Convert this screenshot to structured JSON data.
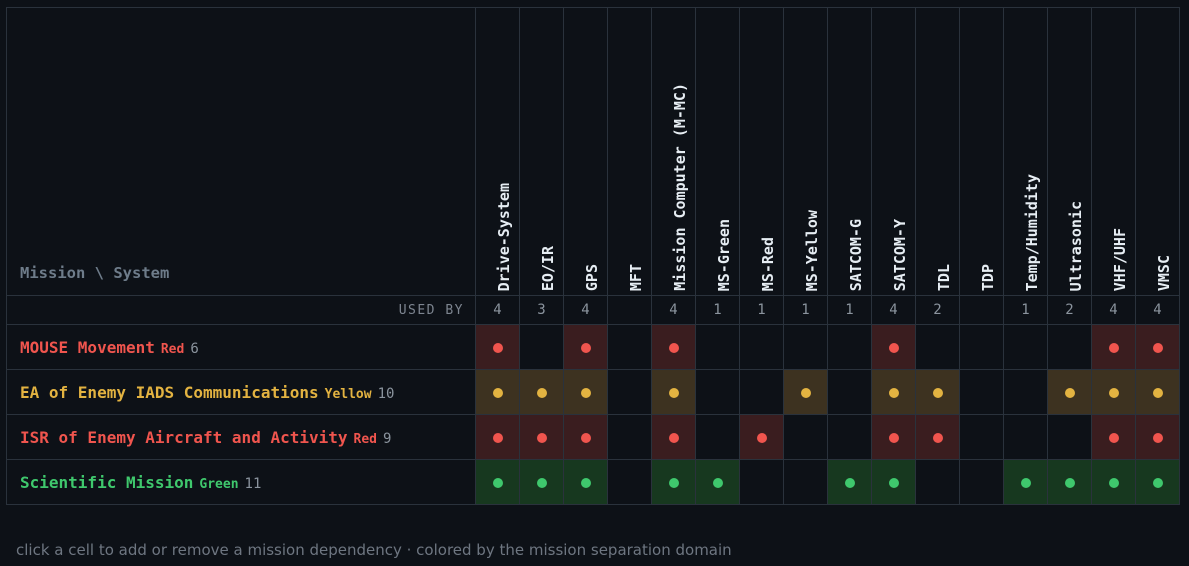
{
  "corner_label": "Mission \\ System",
  "used_by_label": "USED BY",
  "systems": [
    {
      "name": "Drive-System",
      "count": "4"
    },
    {
      "name": "EO/IR",
      "count": "3"
    },
    {
      "name": "GPS",
      "count": "4"
    },
    {
      "name": "MFT",
      "count": ""
    },
    {
      "name": "Mission Computer (M-MC)",
      "count": "4"
    },
    {
      "name": "MS-Green",
      "count": "1"
    },
    {
      "name": "MS-Red",
      "count": "1"
    },
    {
      "name": "MS-Yellow",
      "count": "1"
    },
    {
      "name": "SATCOM-G",
      "count": "1"
    },
    {
      "name": "SATCOM-Y",
      "count": "4"
    },
    {
      "name": "TDL",
      "count": "2"
    },
    {
      "name": "TDP",
      "count": ""
    },
    {
      "name": "Temp/Humidity",
      "count": "1"
    },
    {
      "name": "Ultrasonic",
      "count": "2"
    },
    {
      "name": "VHF/UHF",
      "count": "4"
    },
    {
      "name": "VMSC",
      "count": "4"
    }
  ],
  "missions": [
    {
      "name": "MOUSE Movement",
      "domain": "Red",
      "count": "6",
      "color": "red",
      "deps": [
        1,
        0,
        1,
        0,
        1,
        0,
        0,
        0,
        0,
        1,
        0,
        0,
        0,
        0,
        1,
        1
      ]
    },
    {
      "name": "EA of Enemy IADS Communications",
      "domain": "Yellow",
      "count": "10",
      "color": "yellow",
      "deps": [
        1,
        1,
        1,
        0,
        1,
        0,
        0,
        1,
        0,
        1,
        1,
        0,
        0,
        1,
        1,
        1
      ]
    },
    {
      "name": "ISR of Enemy Aircraft and Activity",
      "domain": "Red",
      "count": "9",
      "color": "red",
      "deps": [
        1,
        1,
        1,
        0,
        1,
        0,
        1,
        0,
        0,
        1,
        1,
        0,
        0,
        0,
        1,
        1
      ]
    },
    {
      "name": "Scientific Mission",
      "domain": "Green",
      "count": "11",
      "color": "green",
      "deps": [
        1,
        1,
        1,
        0,
        1,
        1,
        0,
        0,
        1,
        1,
        0,
        0,
        1,
        1,
        1,
        1
      ]
    }
  ],
  "domain_colors": {
    "red": "#f0554e",
    "yellow": "#e3b341",
    "green": "#3fc86d"
  },
  "footer": "click a cell to add or remove a mission dependency · colored by the mission separation domain"
}
